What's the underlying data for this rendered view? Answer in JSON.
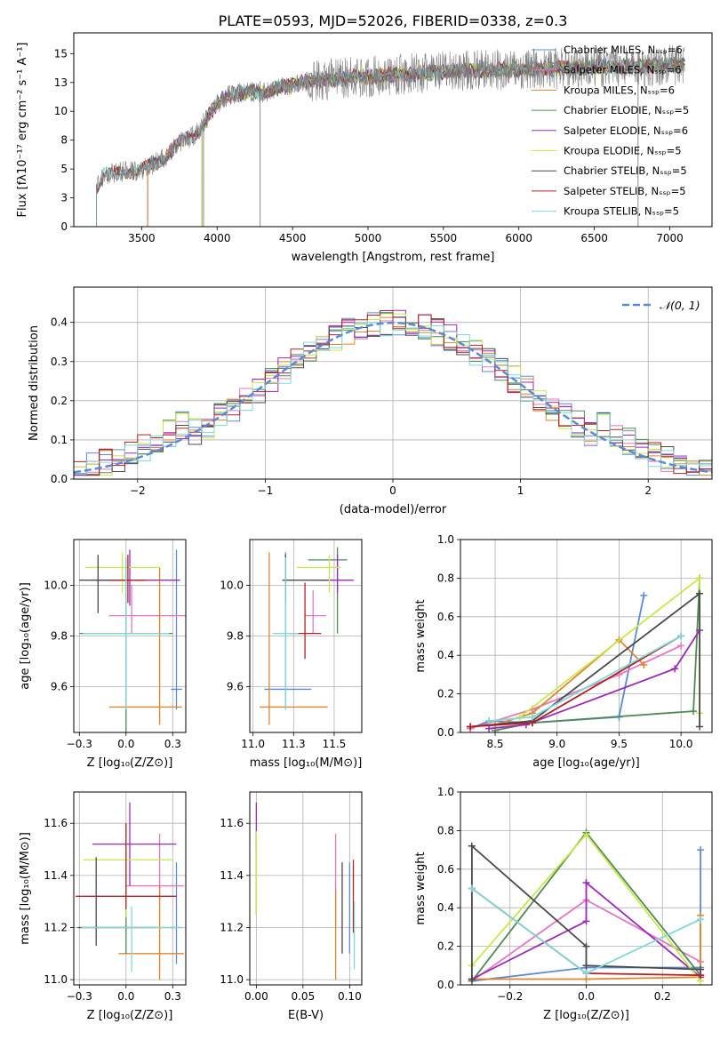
{
  "title": "PLATE=0593, MJD=52026, FIBERID=0338, z=0.3",
  "colors": {
    "Chabrier MILES": "#5b8bd6",
    "Salpeter MILES": "#e377c2",
    "Kroupa MILES": "#e0852e",
    "Chabrier ELODIE": "#4f8a55",
    "Salpeter ELODIE": "#9a2ab8",
    "Kroupa ELODIE": "#c8e84a",
    "Chabrier STELIB": "#4a4a4a",
    "Salpeter STELIB": "#b22222",
    "Kroupa STELIB": "#80d8d8",
    "data": "#808080",
    "normal": "#5b8bd6"
  },
  "chart_data": [
    {
      "id": "spectrum",
      "type": "line",
      "title": "PLATE=0593, MJD=52026, FIBERID=0338, z=0.3",
      "xlabel": "wavelength [Angstrom, rest frame]",
      "ylabel": "Flux [fλ10⁻¹⁷ erg cm⁻² s⁻¹ A⁻¹]",
      "xlim": [
        3050,
        7280
      ],
      "ylim": [
        0,
        16.8
      ],
      "xticks": [
        3500,
        4000,
        4500,
        5000,
        5500,
        6000,
        6500,
        7000
      ],
      "yticks": [
        0.0,
        2.5,
        5.0,
        7.5,
        10.0,
        12.5,
        15.0
      ],
      "legend_position": "right",
      "legend": [
        "Chabrier MILES, Nₛₛₚ=6",
        "Salpeter MILES, Nₛₛₚ=6",
        "Kroupa MILES, Nₛₛₚ=6",
        "Chabrier ELODIE, Nₛₛₚ=5",
        "Salpeter ELODIE, Nₛₛₚ=6",
        "Kroupa ELODIE, Nₛₛₚ=5",
        "Chabrier STELIB, Nₛₛₚ=5",
        "Salpeter STELIB, Nₛₛₚ=5",
        "Kroupa STELIB, Nₛₛₚ=5"
      ],
      "continuum": [
        [
          3200,
          3.4
        ],
        [
          3250,
          4.4
        ],
        [
          3300,
          4.6
        ],
        [
          3350,
          4.7
        ],
        [
          3400,
          4.8
        ],
        [
          3450,
          4.8
        ],
        [
          3500,
          4.9
        ],
        [
          3550,
          5.2
        ],
        [
          3600,
          5.6
        ],
        [
          3650,
          6.0
        ],
        [
          3700,
          6.6
        ],
        [
          3750,
          7.2
        ],
        [
          3800,
          7.6
        ],
        [
          3850,
          8.0
        ],
        [
          3900,
          8.6
        ],
        [
          3950,
          9.8
        ],
        [
          4000,
          10.6
        ],
        [
          4050,
          11.2
        ],
        [
          4100,
          11.5
        ],
        [
          4200,
          11.7
        ],
        [
          4300,
          11.6
        ],
        [
          4400,
          12.0
        ],
        [
          4500,
          12.3
        ],
        [
          4600,
          12.6
        ],
        [
          4700,
          12.7
        ],
        [
          4800,
          12.8
        ],
        [
          4900,
          13.0
        ],
        [
          5000,
          13.0
        ],
        [
          5200,
          13.2
        ],
        [
          5400,
          13.3
        ],
        [
          5600,
          13.5
        ],
        [
          5800,
          13.6
        ],
        [
          6000,
          13.6
        ],
        [
          6200,
          13.7
        ],
        [
          6400,
          13.8
        ],
        [
          6600,
          13.9
        ],
        [
          6800,
          13.9
        ],
        [
          7000,
          14.0
        ],
        [
          7100,
          14.0
        ]
      ],
      "model_starts": {
        "Chabrier MILES": 3540,
        "Salpeter MILES": 3540,
        "Kroupa MILES": 3540,
        "Chabrier ELODIE": 3900,
        "Salpeter ELODIE": 3900,
        "Kroupa ELODIE": 3900,
        "Chabrier STELIB": 3200,
        "Salpeter STELIB": 3200,
        "Kroupa STELIB": 3200
      },
      "spikes_to_zero": [
        3910,
        4285,
        6790
      ]
    },
    {
      "id": "residuals",
      "type": "line",
      "xlabel": "(data-model)/error",
      "ylabel": "Normed distribution",
      "xlim": [
        -2.5,
        2.5
      ],
      "ylim": [
        0,
        0.49
      ],
      "xticks": [
        -2,
        -1,
        0,
        1,
        2
      ],
      "yticks": [
        0.0,
        0.1,
        0.2,
        0.3,
        0.4
      ],
      "grid": true,
      "legend_position": "top-right",
      "legend": [
        "𝒩(0, 1)"
      ],
      "bin_width": 0.1,
      "bin_start": -2.5
    },
    {
      "id": "age-vs-Z",
      "type": "scatter",
      "xlabel": "Z [log₁₀(Z/Z⊙)]",
      "ylabel": "age  [log₁₀(age/yr)]",
      "xlim": [
        -0.28,
        0.32
      ],
      "ylim": [
        9.42,
        10.18
      ],
      "xticks": [
        -0.25,
        0.0,
        0.25
      ],
      "yticks": [
        9.6,
        9.8,
        10.0
      ],
      "grid": true,
      "points": [
        {
          "model": "Chabrier MILES",
          "x": 0.27,
          "y": 9.59,
          "xerr": [
            0.03,
            0.03
          ],
          "yerr": [
            0.08,
            0.55
          ]
        },
        {
          "model": "Salpeter MILES",
          "x": 0.03,
          "y": 9.88,
          "xerr": [
            0.12,
            0.32
          ],
          "yerr": [
            0.07,
            0.12
          ]
        },
        {
          "model": "Kroupa MILES",
          "x": 0.18,
          "y": 9.52,
          "xerr": [
            0.27,
            0.12
          ],
          "yerr": [
            0.07,
            0.55
          ]
        },
        {
          "model": "Chabrier ELODIE",
          "x": 0.0,
          "y": 9.81,
          "xerr": [
            0.25,
            0.25
          ],
          "yerr": [
            0.4,
            0.3
          ]
        },
        {
          "model": "Salpeter ELODIE",
          "x": 0.02,
          "y": 10.02,
          "xerr": [
            0.18,
            0.27
          ],
          "yerr": [
            0.1,
            0.12
          ]
        },
        {
          "model": "Kroupa ELODIE",
          "x": -0.02,
          "y": 10.07,
          "xerr": [
            0.2,
            0.2
          ],
          "yerr": [
            0.1,
            0.06
          ]
        },
        {
          "model": "Chabrier STELIB",
          "x": -0.15,
          "y": 10.02,
          "xerr": [
            0.1,
            0.25
          ],
          "yerr": [
            0.13,
            0.1
          ]
        },
        {
          "model": "Salpeter STELIB",
          "x": 0.01,
          "y": 10.02,
          "xerr": [
            0.1,
            0.1
          ],
          "yerr": [
            0.09,
            0.1
          ]
        },
        {
          "model": "Kroupa STELIB",
          "x": 0.0,
          "y": 9.81,
          "xerr": [
            0.23,
            0.23
          ],
          "yerr": [
            0.3,
            0.3
          ]
        }
      ]
    },
    {
      "id": "age-vs-mass",
      "type": "scatter",
      "xlabel": "mass [log₁₀(M/M⊙)]",
      "ylabel": "",
      "xlim": [
        10.98,
        11.67
      ],
      "ylim": [
        9.42,
        10.18
      ],
      "xticks": [
        11.0,
        11.25,
        11.5
      ],
      "yticks": [
        9.6,
        9.8,
        10.0
      ],
      "grid": true,
      "points": [
        {
          "model": "Chabrier MILES",
          "x": 11.2,
          "y": 9.59,
          "xerr": [
            0.13,
            0.16
          ],
          "yerr": [
            0.08,
            0.54
          ]
        },
        {
          "model": "Salpeter MILES",
          "x": 11.37,
          "y": 9.88,
          "xerr": [
            0.05,
            0.08
          ],
          "yerr": [
            0.07,
            0.1
          ]
        },
        {
          "model": "Kroupa MILES",
          "x": 11.1,
          "y": 9.52,
          "xerr": [
            0.06,
            0.36
          ],
          "yerr": [
            0.07,
            0.61
          ]
        },
        {
          "model": "Chabrier ELODIE",
          "x": 11.52,
          "y": 10.1,
          "xerr": [
            0.18,
            0.06
          ],
          "yerr": [
            0.29,
            0.05
          ]
        },
        {
          "model": "Salpeter ELODIE",
          "x": 11.52,
          "y": 10.02,
          "xerr": [
            0.1,
            0.1
          ],
          "yerr": [
            0.05,
            0.1
          ]
        },
        {
          "model": "Kroupa ELODIE",
          "x": 11.47,
          "y": 10.07,
          "xerr": [
            0.2,
            0.07
          ],
          "yerr": [
            0.1,
            0.05
          ]
        },
        {
          "model": "Chabrier STELIB",
          "x": 11.2,
          "y": 10.02,
          "xerr": [
            0.02,
            0.26
          ],
          "yerr": [
            0.09,
            0.1
          ]
        },
        {
          "model": "Salpeter STELIB",
          "x": 11.32,
          "y": 9.81,
          "xerr": [
            0.1,
            0.1
          ],
          "yerr": [
            0.1,
            0.2
          ]
        },
        {
          "model": "Kroupa STELIB",
          "x": 11.2,
          "y": 9.81,
          "xerr": [
            0.08,
            0.08
          ],
          "yerr": [
            0.3,
            0.3
          ]
        }
      ]
    },
    {
      "id": "massweight-vs-age",
      "type": "line",
      "xlabel": "age  [log₁₀(age/yr)]",
      "ylabel": "mass weight",
      "xlim": [
        8.22,
        10.25
      ],
      "ylim": [
        0.0,
        1.0
      ],
      "xticks": [
        8.5,
        9.0,
        9.5,
        10.0
      ],
      "yticks": [
        0.0,
        0.2,
        0.4,
        0.6,
        0.8,
        1.0
      ],
      "grid": true,
      "series": [
        {
          "name": "Chabrier MILES",
          "x": [
            8.3,
            8.45,
            8.8,
            9.5,
            9.7
          ],
          "y": [
            0.02,
            0.06,
            0.05,
            0.08,
            0.71
          ]
        },
        {
          "name": "Salpeter MILES",
          "x": [
            8.3,
            8.8,
            9.5,
            10.0
          ],
          "y": [
            0.02,
            0.12,
            0.3,
            0.45
          ]
        },
        {
          "name": "Kroupa MILES",
          "x": [
            8.3,
            8.5,
            8.8,
            9.5,
            9.7
          ],
          "y": [
            0.03,
            0.04,
            0.1,
            0.48,
            0.35
          ]
        },
        {
          "name": "Chabrier ELODIE",
          "x": [
            8.5,
            8.8,
            10.1,
            10.15
          ],
          "y": [
            0.01,
            0.05,
            0.11,
            0.8
          ]
        },
        {
          "name": "Salpeter ELODIE",
          "x": [
            8.45,
            8.75,
            9.95,
            10.15
          ],
          "y": [
            0.02,
            0.04,
            0.33,
            0.53
          ]
        },
        {
          "name": "Kroupa ELODIE",
          "x": [
            8.7,
            10.15,
            10.15
          ],
          "y": [
            0.08,
            0.8,
            0.1
          ]
        },
        {
          "name": "Chabrier STELIB",
          "x": [
            8.3,
            8.8,
            10.15,
            10.15
          ],
          "y": [
            0.03,
            0.06,
            0.72,
            0.03
          ]
        },
        {
          "name": "Salpeter STELIB",
          "x": [
            8.3,
            8.8,
            10.0
          ],
          "y": [
            0.03,
            0.05,
            0.5
          ]
        },
        {
          "name": "Kroupa STELIB",
          "x": [
            8.45,
            8.8,
            10.0
          ],
          "y": [
            0.06,
            0.08,
            0.5
          ]
        }
      ]
    },
    {
      "id": "mass-vs-Z",
      "type": "scatter",
      "xlabel": "Z [log₁₀(Z/Z⊙)]",
      "ylabel": "mass [log₁₀(M/M⊙)]",
      "xlim": [
        -0.28,
        0.32
      ],
      "ylim": [
        10.98,
        11.72
      ],
      "xticks": [
        -0.25,
        0.0,
        0.25
      ],
      "yticks": [
        11.0,
        11.2,
        11.4,
        11.6
      ],
      "grid": true,
      "points": [
        {
          "model": "Chabrier MILES",
          "x": 0.27,
          "y": 11.2,
          "xerr": [
            0.03,
            0.03
          ],
          "yerr": [
            0.14,
            0.25
          ]
        },
        {
          "model": "Salpeter MILES",
          "x": 0.18,
          "y": 11.36,
          "xerr": [
            0.18,
            0.13
          ],
          "yerr": [
            0.06,
            0.2
          ]
        },
        {
          "model": "Kroupa MILES",
          "x": 0.18,
          "y": 11.1,
          "xerr": [
            0.22,
            0.13
          ],
          "yerr": [
            0.1,
            0.26
          ]
        },
        {
          "model": "Chabrier ELODIE",
          "x": 0.0,
          "y": 11.2,
          "xerr": [
            0.25,
            0.25
          ],
          "yerr": [
            0.1,
            0.39
          ]
        },
        {
          "model": "Salpeter ELODIE",
          "x": 0.02,
          "y": 11.52,
          "xerr": [
            0.2,
            0.25
          ],
          "yerr": [
            0.16,
            0.16
          ]
        },
        {
          "model": "Kroupa ELODIE",
          "x": 0.0,
          "y": 11.46,
          "xerr": [
            0.23,
            0.25
          ],
          "yerr": [
            0.22,
            0.12
          ]
        },
        {
          "model": "Chabrier STELIB",
          "x": -0.16,
          "y": 11.2,
          "xerr": [
            0.1,
            0.32
          ],
          "yerr": [
            0.07,
            0.27
          ]
        },
        {
          "model": "Salpeter STELIB",
          "x": 0.0,
          "y": 11.32,
          "xerr": [
            0.27,
            0.27
          ],
          "yerr": [
            0.05,
            0.28
          ]
        },
        {
          "model": "Kroupa STELIB",
          "x": 0.03,
          "y": 11.2,
          "xerr": [
            0.27,
            0.27
          ],
          "yerr": [
            0.17,
            0.08
          ]
        }
      ]
    },
    {
      "id": "mass-vs-EBV",
      "type": "scatter",
      "xlabel": "E(B-V)",
      "ylabel": "",
      "xlim": [
        -0.007,
        0.113
      ],
      "ylim": [
        10.98,
        11.72
      ],
      "xticks": [
        0.0,
        0.05,
        0.1
      ],
      "yticks": [
        11.0,
        11.2,
        11.4,
        11.6
      ],
      "grid": true,
      "points": [
        {
          "model": "Chabrier MILES",
          "x": 0.1,
          "y": 11.2,
          "yerr": [
            0.1,
            0.25
          ]
        },
        {
          "model": "Salpeter MILES",
          "x": 0.085,
          "y": 11.36,
          "yerr": [
            0.16,
            0.2
          ]
        },
        {
          "model": "Kroupa MILES",
          "x": 0.085,
          "y": 11.1,
          "yerr": [
            0.1,
            0.25
          ]
        },
        {
          "model": "Chabrier ELODIE",
          "x": 0.0,
          "y": 11.45,
          "yerr": [
            0.2,
            0.12
          ]
        },
        {
          "model": "Salpeter ELODIE",
          "x": 0.0,
          "y": 11.6,
          "yerr": [
            0.1,
            0.08
          ]
        },
        {
          "model": "Kroupa ELODIE",
          "x": 0.0,
          "y": 11.45,
          "yerr": [
            0.2,
            0.12
          ]
        },
        {
          "model": "Chabrier STELIB",
          "x": 0.092,
          "y": 11.2,
          "yerr": [
            0.1,
            0.25
          ]
        },
        {
          "model": "Salpeter STELIB",
          "x": 0.104,
          "y": 11.32,
          "yerr": [
            0.14,
            0.14
          ]
        },
        {
          "model": "Kroupa STELIB",
          "x": 0.105,
          "y": 11.2,
          "yerr": [
            0.16,
            0.1
          ]
        }
      ]
    },
    {
      "id": "massweight-vs-Z",
      "type": "line",
      "xlabel": "Z [log₁₀(Z/Z⊙)]",
      "ylabel": "mass weight",
      "xlim": [
        -0.33,
        0.33
      ],
      "ylim": [
        0.0,
        1.0
      ],
      "xticks": [
        -0.2,
        0.0,
        0.2
      ],
      "yticks": [
        0.0,
        0.2,
        0.4,
        0.6,
        0.8,
        1.0
      ],
      "grid": true,
      "series": [
        {
          "name": "Chabrier MILES",
          "x": [
            -0.3,
            0.0,
            0.3,
            0.3
          ],
          "y": [
            0.02,
            0.09,
            0.09,
            0.7
          ]
        },
        {
          "name": "Salpeter MILES",
          "x": [
            -0.3,
            0.0,
            0.3
          ],
          "y": [
            0.02,
            0.44,
            0.12
          ]
        },
        {
          "name": "Kroupa MILES",
          "x": [
            -0.3,
            0.0,
            0.3,
            0.3
          ],
          "y": [
            0.03,
            0.03,
            0.04,
            0.36
          ]
        },
        {
          "name": "Chabrier ELODIE",
          "x": [
            -0.3,
            0.0,
            0.3
          ],
          "y": [
            0.02,
            0.79,
            0.05
          ]
        },
        {
          "name": "Salpeter ELODIE",
          "x": [
            -0.3,
            0.0,
            0.0,
            0.3
          ],
          "y": [
            0.03,
            0.33,
            0.53,
            0.04
          ]
        },
        {
          "name": "Kroupa ELODIE",
          "x": [
            -0.3,
            0.0,
            0.3
          ],
          "y": [
            0.1,
            0.78,
            0.02
          ]
        },
        {
          "name": "Chabrier STELIB",
          "x": [
            -0.3,
            -0.3,
            0.0,
            0.0,
            0.3
          ],
          "y": [
            0.03,
            0.72,
            0.2,
            0.1,
            0.08
          ]
        },
        {
          "name": "Salpeter STELIB",
          "x": [
            -0.3,
            0.0,
            0.3
          ],
          "y": [
            0.5,
            0.06,
            0.05
          ]
        },
        {
          "name": "Kroupa STELIB",
          "x": [
            -0.3,
            0.0,
            0.3
          ],
          "y": [
            0.5,
            0.06,
            0.34
          ]
        }
      ]
    }
  ]
}
